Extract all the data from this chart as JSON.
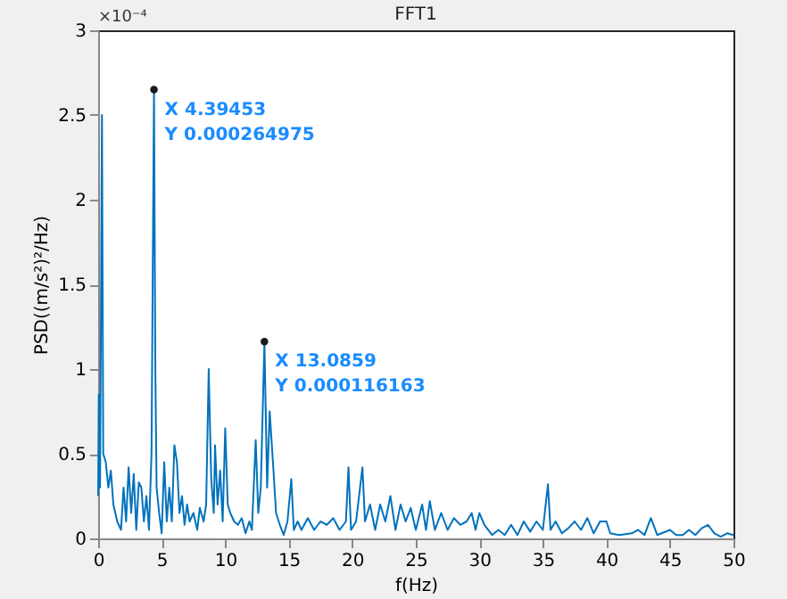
{
  "chart_data": {
    "type": "line",
    "title": "FFT1",
    "xlabel": "f(Hz)",
    "ylabel": "PSD((m/s²)²/Hz)",
    "x": [
      0,
      0.05,
      0.15,
      0.3,
      0.4,
      0.6,
      0.8,
      1.0,
      1.2,
      1.5,
      1.8,
      2.0,
      2.2,
      2.4,
      2.6,
      2.8,
      3.0,
      3.2,
      3.4,
      3.6,
      3.8,
      4.0,
      4.2,
      4.39453,
      4.5,
      4.6,
      4.8,
      5.0,
      5.2,
      5.4,
      5.6,
      5.8,
      6.0,
      6.2,
      6.4,
      6.6,
      6.8,
      7.0,
      7.2,
      7.5,
      7.8,
      8.0,
      8.3,
      8.5,
      8.7,
      8.9,
      9.1,
      9.2,
      9.4,
      9.6,
      9.8,
      10.0,
      10.2,
      10.4,
      10.7,
      11.0,
      11.3,
      11.6,
      11.9,
      12.1,
      12.4,
      12.6,
      12.8,
      13.0859,
      13.3,
      13.5,
      13.8,
      14.0,
      14.3,
      14.6,
      14.9,
      15.2,
      15.4,
      15.7,
      16,
      16.5,
      17,
      17.5,
      18,
      18.5,
      19,
      19.5,
      19.7,
      19.9,
      20.3,
      20.8,
      21.0,
      21.4,
      21.8,
      22.2,
      22.6,
      23.0,
      23.4,
      23.8,
      24.2,
      24.6,
      25.0,
      25.5,
      25.8,
      26.1,
      26.5,
      27.0,
      27.5,
      28,
      28.5,
      29,
      29.4,
      29.7,
      30.0,
      30.4,
      31.0,
      31.5,
      32.0,
      32.5,
      33,
      33.5,
      34,
      34.5,
      35.0,
      35.4,
      35.6,
      36.0,
      36.5,
      37,
      37.5,
      38,
      38.5,
      39,
      39.5,
      40,
      40.3,
      41,
      42,
      42.5,
      43,
      43.5,
      44,
      45,
      45.5,
      46,
      46.5,
      47,
      47.5,
      48,
      48.5,
      49,
      49.5,
      50
    ],
    "series": [
      {
        "color": "#0072bd",
        "values": [
          0.25,
          0.85,
          0.3,
          2.5,
          0.5,
          0.45,
          0.3,
          0.4,
          0.2,
          0.1,
          0.05,
          0.3,
          0.1,
          0.42,
          0.15,
          0.38,
          0.05,
          0.33,
          0.3,
          0.1,
          0.25,
          0.05,
          0.5,
          2.64975,
          1.0,
          0.3,
          0.15,
          0.03,
          0.45,
          0.1,
          0.3,
          0.1,
          0.55,
          0.45,
          0.15,
          0.25,
          0.08,
          0.2,
          0.1,
          0.15,
          0.05,
          0.18,
          0.1,
          0.2,
          1.0,
          0.35,
          0.15,
          0.55,
          0.2,
          0.4,
          0.1,
          0.65,
          0.2,
          0.15,
          0.1,
          0.08,
          0.12,
          0.03,
          0.1,
          0.05,
          0.58,
          0.15,
          0.3,
          1.16163,
          0.3,
          0.75,
          0.4,
          0.15,
          0.08,
          0.02,
          0.1,
          0.35,
          0.05,
          0.1,
          0.05,
          0.12,
          0.05,
          0.1,
          0.08,
          0.12,
          0.05,
          0.1,
          0.42,
          0.05,
          0.1,
          0.42,
          0.1,
          0.2,
          0.05,
          0.2,
          0.1,
          0.25,
          0.05,
          0.2,
          0.1,
          0.18,
          0.05,
          0.2,
          0.05,
          0.22,
          0.05,
          0.15,
          0.05,
          0.12,
          0.08,
          0.1,
          0.15,
          0.05,
          0.15,
          0.08,
          0.02,
          0.05,
          0.02,
          0.08,
          0.02,
          0.1,
          0.04,
          0.1,
          0.05,
          0.32,
          0.05,
          0.1,
          0.03,
          0.06,
          0.1,
          0.05,
          0.12,
          0.03,
          0.1,
          0.1,
          0.03,
          0.02,
          0.03,
          0.05,
          0.02,
          0.12,
          0.02,
          0.05,
          0.02,
          0.02,
          0.05,
          0.02,
          0.06,
          0.08,
          0.03,
          0.01,
          0.03,
          0.02
        ]
      }
    ],
    "xlim": [
      0,
      50
    ],
    "xticks": [
      0,
      5,
      10,
      15,
      20,
      25,
      30,
      35,
      40,
      45,
      50
    ],
    "ylim": [
      0,
      3
    ],
    "yticks": [
      0,
      0.5,
      1,
      1.5,
      2,
      2.5,
      3
    ],
    "grid": false,
    "legend": false,
    "marker": "none",
    "line_style": "solid",
    "annotations": [
      "×10⁻⁴",
      {
        "text": "X 4.39453\nY 0.000264975",
        "x": 4.39453,
        "y": 2.64975
      },
      {
        "text": "X 13.0859\nY 0.000116163",
        "x": 13.0859,
        "y": 1.16163
      }
    ]
  }
}
